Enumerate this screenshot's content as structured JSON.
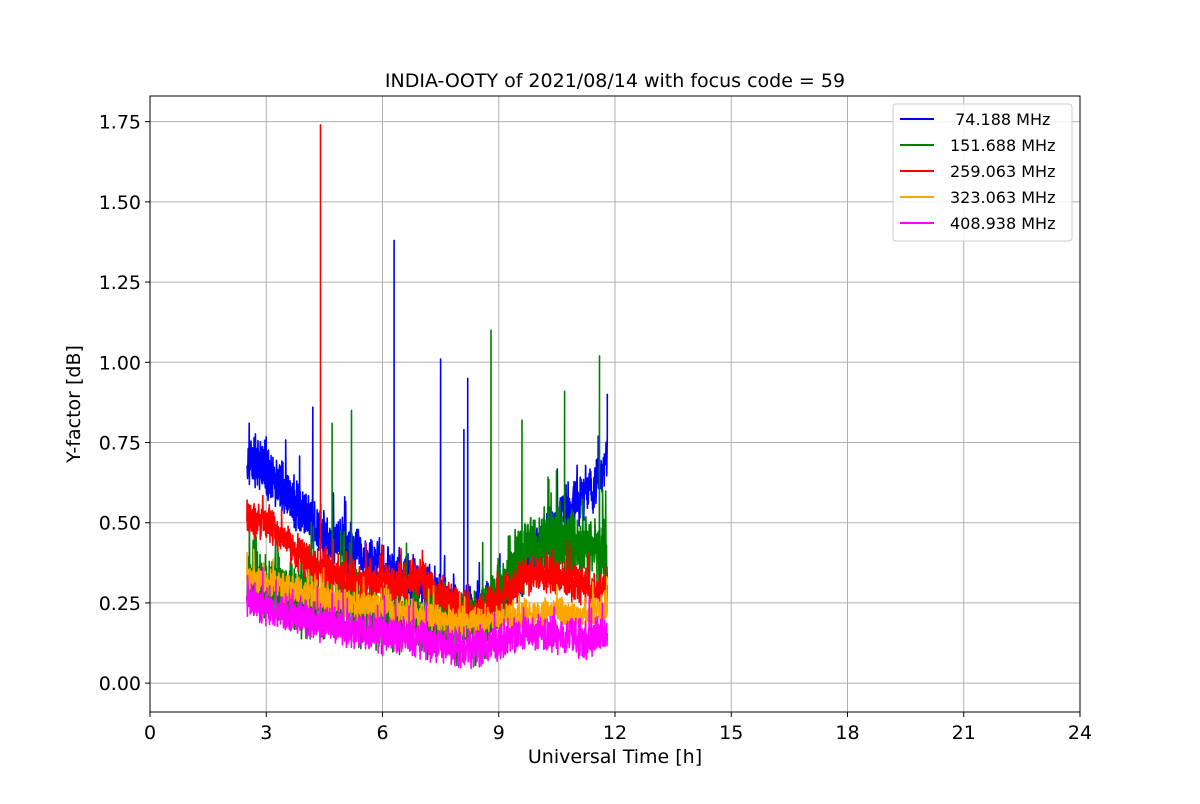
{
  "chart_data": {
    "type": "line",
    "title": "INDIA-OOTY of 2021/08/14 with focus code = 59",
    "xlabel": "Universal Time [h]",
    "ylabel": "Y-factor [dB]",
    "xlim": [
      0,
      24
    ],
    "ylim": [
      -0.09,
      1.83
    ],
    "xticks": [
      0,
      3,
      6,
      9,
      12,
      15,
      18,
      21,
      24
    ],
    "xtick_labels": [
      "0",
      "3",
      "6",
      "9",
      "12",
      "15",
      "18",
      "21",
      "24"
    ],
    "yticks": [
      0.0,
      0.25,
      0.5,
      0.75,
      1.0,
      1.25,
      1.5,
      1.75
    ],
    "ytick_labels": [
      "0.00",
      "0.25",
      "0.50",
      "0.75",
      "1.00",
      "1.25",
      "1.50",
      "1.75"
    ],
    "grid": true,
    "legend_position": "top-right",
    "data_range_x": [
      2.5,
      11.8
    ],
    "series": [
      {
        "name": " 74.188 MHz",
        "color": "#0000ff",
        "x": [
          2.5,
          3.0,
          3.5,
          4.0,
          4.5,
          5.0,
          5.5,
          6.0,
          6.5,
          7.0,
          7.5,
          8.0,
          8.5,
          9.0,
          9.5,
          10.0,
          10.5,
          11.0,
          11.5,
          11.8
        ],
        "values": [
          0.7,
          0.66,
          0.6,
          0.52,
          0.46,
          0.42,
          0.4,
          0.36,
          0.34,
          0.3,
          0.27,
          0.24,
          0.22,
          0.25,
          0.33,
          0.42,
          0.5,
          0.56,
          0.63,
          0.7
        ],
        "noise": 0.07,
        "spikes": [
          {
            "x": 4.2,
            "y": 0.86
          },
          {
            "x": 6.3,
            "y": 1.38
          },
          {
            "x": 7.5,
            "y": 1.01
          },
          {
            "x": 8.2,
            "y": 0.95
          },
          {
            "x": 8.1,
            "y": 0.79
          },
          {
            "x": 11.8,
            "y": 0.9
          }
        ]
      },
      {
        "name": "151.688 MHz",
        "color": "#008000",
        "x": [
          2.5,
          3.0,
          3.5,
          4.0,
          4.5,
          5.0,
          5.5,
          6.0,
          6.5,
          7.0,
          7.5,
          8.0,
          8.5,
          9.0,
          9.5,
          10.0,
          10.5,
          11.0,
          11.5,
          11.8
        ],
        "values": [
          0.32,
          0.3,
          0.28,
          0.27,
          0.25,
          0.24,
          0.23,
          0.22,
          0.21,
          0.2,
          0.19,
          0.18,
          0.18,
          0.28,
          0.38,
          0.42,
          0.45,
          0.42,
          0.4,
          0.38
        ],
        "noise": 0.1,
        "spikes": [
          {
            "x": 4.7,
            "y": 0.81
          },
          {
            "x": 5.2,
            "y": 0.85
          },
          {
            "x": 8.8,
            "y": 1.1
          },
          {
            "x": 9.6,
            "y": 0.82
          },
          {
            "x": 10.7,
            "y": 0.91
          },
          {
            "x": 11.6,
            "y": 1.02
          }
        ]
      },
      {
        "name": "259.063 MHz",
        "color": "#ff0000",
        "x": [
          2.5,
          3.0,
          3.5,
          4.0,
          4.5,
          5.0,
          5.5,
          6.0,
          6.5,
          7.0,
          7.5,
          8.0,
          8.5,
          9.0,
          9.5,
          10.0,
          10.5,
          11.0,
          11.5,
          11.8
        ],
        "values": [
          0.52,
          0.5,
          0.44,
          0.38,
          0.35,
          0.33,
          0.32,
          0.31,
          0.31,
          0.32,
          0.28,
          0.24,
          0.22,
          0.26,
          0.32,
          0.35,
          0.33,
          0.31,
          0.29,
          0.3
        ],
        "noise": 0.05,
        "spikes": [
          {
            "x": 4.4,
            "y": 1.74
          }
        ]
      },
      {
        "name": "323.063 MHz",
        "color": "#ffa500",
        "x": [
          2.5,
          3.0,
          3.5,
          4.0,
          4.5,
          5.0,
          5.5,
          6.0,
          6.5,
          7.0,
          7.5,
          8.0,
          8.5,
          9.0,
          9.5,
          10.0,
          10.5,
          11.0,
          11.5,
          11.8
        ],
        "values": [
          0.33,
          0.32,
          0.3,
          0.28,
          0.26,
          0.25,
          0.24,
          0.23,
          0.22,
          0.21,
          0.2,
          0.19,
          0.19,
          0.2,
          0.21,
          0.22,
          0.22,
          0.21,
          0.22,
          0.24
        ],
        "noise": 0.04,
        "spikes": []
      },
      {
        "name": "408.938 MHz",
        "color": "#ff00ff",
        "x": [
          2.5,
          3.0,
          3.5,
          4.0,
          4.5,
          5.0,
          5.5,
          6.0,
          6.5,
          7.0,
          7.5,
          8.0,
          8.5,
          9.0,
          9.5,
          10.0,
          10.5,
          11.0,
          11.5,
          11.8
        ],
        "values": [
          0.26,
          0.24,
          0.22,
          0.2,
          0.18,
          0.17,
          0.16,
          0.15,
          0.15,
          0.14,
          0.12,
          0.11,
          0.11,
          0.13,
          0.15,
          0.16,
          0.15,
          0.14,
          0.14,
          0.15
        ],
        "noise": 0.05,
        "spikes": []
      }
    ]
  }
}
